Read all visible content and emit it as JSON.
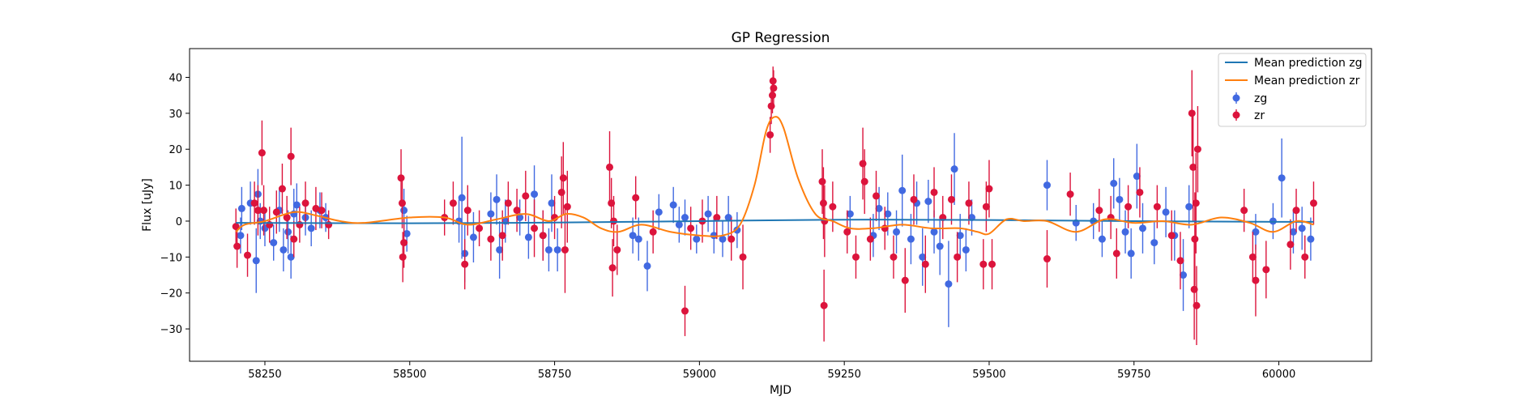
{
  "chart_data": {
    "type": "scatter",
    "title": "GP Regression",
    "xlabel": "MJD",
    "ylabel": "Flux [uJy]",
    "xlim": [
      58120,
      60160
    ],
    "ylim": [
      -39,
      48
    ],
    "xticks": [
      58250,
      58500,
      58750,
      59000,
      59250,
      59500,
      59750,
      60000
    ],
    "xtick_labels": [
      "58250",
      "58500",
      "58750",
      "59000",
      "59250",
      "59500",
      "59750",
      "60000"
    ],
    "yticks": [
      -30,
      -20,
      -10,
      0,
      10,
      20,
      30,
      40
    ],
    "ytick_labels": [
      "−30",
      "−20",
      "−10",
      "0",
      "10",
      "20",
      "30",
      "40"
    ],
    "grid": false,
    "legend_position": "top-right",
    "series": [
      {
        "name": "Mean prediction zg",
        "kind": "line",
        "color": "#1f77b4",
        "x": [
          58200,
          58500,
          58750,
          59000,
          59250,
          59500,
          59750,
          60000,
          60060
        ],
        "y": [
          -0.5,
          -0.6,
          -0.4,
          0.0,
          0.4,
          0.3,
          0.0,
          -0.2,
          -0.2
        ]
      },
      {
        "name": "Mean prediction zr",
        "kind": "line",
        "color": "#ff7f0e",
        "x": [
          58200,
          58215,
          58250,
          58300,
          58340,
          58380,
          58420,
          58500,
          58560,
          58600,
          58650,
          58700,
          58740,
          58770,
          58800,
          58830,
          58860,
          58900,
          58950,
          59000,
          59040,
          59070,
          59095,
          59115,
          59130,
          59145,
          59170,
          59200,
          59230,
          59260,
          59300,
          59350,
          59400,
          59450,
          59480,
          59500,
          59530,
          59560,
          59600,
          59650,
          59700,
          59750,
          59800,
          59850,
          59900,
          59950,
          59990,
          60030,
          60060
        ],
        "y": [
          -3,
          -1,
          0,
          2.5,
          1.5,
          0,
          -0.5,
          1,
          1,
          -1,
          0.5,
          2,
          0,
          2,
          1,
          -2,
          -3,
          -1,
          -3,
          -4,
          -4,
          -1,
          10,
          25,
          29,
          26,
          12,
          2,
          0,
          -2,
          -2,
          -1,
          -2,
          -2,
          -3,
          -3.5,
          0.5,
          0,
          0,
          -3,
          0.5,
          -0.5,
          0,
          -1,
          1,
          -0.5,
          -3,
          0,
          -1
        ]
      },
      {
        "name": "zg",
        "kind": "errorbar",
        "color": "#4169e1",
        "points": [
          [
            58208,
            -4,
            5
          ],
          [
            58210,
            3.5,
            6
          ],
          [
            58225,
            5,
            6
          ],
          [
            58235,
            -11,
            9
          ],
          [
            58238,
            7.5,
            7
          ],
          [
            58242,
            0,
            5
          ],
          [
            58250,
            -2,
            5
          ],
          [
            58265,
            -6,
            5
          ],
          [
            58275,
            3,
            6
          ],
          [
            58282,
            -8,
            6
          ],
          [
            58290,
            -3,
            6
          ],
          [
            58295,
            -10,
            6
          ],
          [
            58300,
            2,
            7
          ],
          [
            58305,
            4.5,
            6
          ],
          [
            58320,
            1,
            5
          ],
          [
            58330,
            -2,
            5
          ],
          [
            58345,
            3,
            5
          ],
          [
            58355,
            1,
            4
          ],
          [
            58490,
            3,
            6
          ],
          [
            58495,
            -3.5,
            5
          ],
          [
            58585,
            0,
            6
          ],
          [
            58590,
            6.5,
            17
          ],
          [
            58595,
            -9,
            8
          ],
          [
            58610,
            -4.5,
            7
          ],
          [
            58640,
            2,
            6
          ],
          [
            58650,
            6,
            7
          ],
          [
            58655,
            -8,
            8
          ],
          [
            58665,
            0,
            6
          ],
          [
            58690,
            1,
            5
          ],
          [
            58705,
            -4.5,
            6
          ],
          [
            58715,
            7.5,
            8
          ],
          [
            58730,
            -4,
            7
          ],
          [
            58740,
            -8,
            6
          ],
          [
            58745,
            5,
            8
          ],
          [
            58755,
            -8,
            6
          ],
          [
            58885,
            -4,
            5
          ],
          [
            58895,
            -5,
            6
          ],
          [
            58910,
            -12.5,
            7
          ],
          [
            58930,
            2.5,
            5
          ],
          [
            58955,
            4.5,
            5
          ],
          [
            58965,
            -1,
            5
          ],
          [
            58975,
            1,
            5
          ],
          [
            58995,
            -5,
            4
          ],
          [
            59015,
            2,
            5
          ],
          [
            59025,
            -4,
            5
          ],
          [
            59040,
            -5,
            5
          ],
          [
            59050,
            1,
            6
          ],
          [
            59065,
            -2.5,
            5
          ],
          [
            59260,
            2,
            5
          ],
          [
            59300,
            -4,
            6
          ],
          [
            59310,
            3.5,
            6
          ],
          [
            59325,
            2,
            6
          ],
          [
            59340,
            -3,
            6
          ],
          [
            59350,
            8.5,
            10
          ],
          [
            59365,
            -5,
            7
          ],
          [
            59375,
            5,
            6
          ],
          [
            59385,
            -10,
            8
          ],
          [
            59395,
            5.5,
            6
          ],
          [
            59405,
            -3,
            6
          ],
          [
            59415,
            -7,
            8
          ],
          [
            59430,
            -17.5,
            12
          ],
          [
            59440,
            14.5,
            10
          ],
          [
            59450,
            -4,
            6
          ],
          [
            59460,
            -8,
            6
          ],
          [
            59470,
            1,
            5
          ],
          [
            59600,
            10,
            7
          ],
          [
            59650,
            -0.5,
            5
          ],
          [
            59680,
            0,
            5
          ],
          [
            59695,
            -5,
            5
          ],
          [
            59715,
            10.5,
            7
          ],
          [
            59725,
            6,
            6
          ],
          [
            59735,
            -3,
            6
          ],
          [
            59745,
            -9,
            7
          ],
          [
            59755,
            12.5,
            9
          ],
          [
            59765,
            -2,
            7
          ],
          [
            59785,
            -6,
            6
          ],
          [
            59805,
            2.5,
            7
          ],
          [
            59820,
            -4,
            7
          ],
          [
            59835,
            -15,
            10
          ],
          [
            59845,
            4,
            6
          ],
          [
            59960,
            -3,
            5
          ],
          [
            59990,
            0,
            5
          ],
          [
            60005,
            12,
            11
          ],
          [
            60025,
            -3,
            6
          ],
          [
            60040,
            -2,
            6
          ],
          [
            60055,
            -5,
            6
          ]
        ]
      },
      {
        "name": "zr",
        "kind": "errorbar",
        "color": "#dc143c",
        "points": [
          [
            58200,
            -1.5,
            5
          ],
          [
            58202,
            -7,
            6
          ],
          [
            58220,
            -9.5,
            6
          ],
          [
            58232,
            5,
            6
          ],
          [
            58238,
            3,
            7
          ],
          [
            58245,
            19,
            9
          ],
          [
            58248,
            3,
            7
          ],
          [
            58258,
            -1,
            5
          ],
          [
            58270,
            2.5,
            6
          ],
          [
            58280,
            9,
            7
          ],
          [
            58288,
            1,
            6
          ],
          [
            58295,
            18,
            8
          ],
          [
            58300,
            -5,
            5
          ],
          [
            58310,
            -1,
            5
          ],
          [
            58320,
            5,
            6
          ],
          [
            58338,
            3.5,
            6
          ],
          [
            58348,
            3,
            5
          ],
          [
            58360,
            -1,
            4
          ],
          [
            58485,
            12,
            8
          ],
          [
            58487,
            5,
            7
          ],
          [
            58488,
            -10,
            7
          ],
          [
            58490,
            -6,
            7
          ],
          [
            58560,
            1,
            5
          ],
          [
            58575,
            5,
            6
          ],
          [
            58595,
            -12,
            7
          ],
          [
            58600,
            3,
            7
          ],
          [
            58620,
            -2,
            5
          ],
          [
            58640,
            -5,
            6
          ],
          [
            58660,
            -4,
            7
          ],
          [
            58670,
            5,
            6
          ],
          [
            58685,
            3,
            6
          ],
          [
            58700,
            7,
            7
          ],
          [
            58715,
            -2,
            8
          ],
          [
            58730,
            -4,
            7
          ],
          [
            58750,
            1,
            6
          ],
          [
            58762,
            8,
            10
          ],
          [
            58765,
            12,
            10
          ],
          [
            58768,
            -8,
            12
          ],
          [
            58772,
            4,
            10
          ],
          [
            58845,
            15,
            10
          ],
          [
            58848,
            5,
            7
          ],
          [
            58850,
            -13,
            8
          ],
          [
            58852,
            0,
            7
          ],
          [
            58858,
            -8,
            7
          ],
          [
            58890,
            6.5,
            6
          ],
          [
            58920,
            -3,
            6
          ],
          [
            58975,
            -25,
            7
          ],
          [
            58985,
            -2,
            6
          ],
          [
            59005,
            0,
            6
          ],
          [
            59030,
            1,
            6
          ],
          [
            59055,
            -5,
            6
          ],
          [
            59075,
            -10,
            9
          ],
          [
            59122,
            24,
            5
          ],
          [
            59124,
            32,
            5
          ],
          [
            59126,
            35,
            5
          ],
          [
            59127,
            39,
            4
          ],
          [
            59128,
            37,
            5
          ],
          [
            59212,
            11,
            9
          ],
          [
            59214,
            5,
            10
          ],
          [
            59215,
            -23.5,
            10
          ],
          [
            59216,
            0,
            10
          ],
          [
            59230,
            4,
            7
          ],
          [
            59255,
            -3,
            6
          ],
          [
            59270,
            -10,
            6
          ],
          [
            59282,
            16,
            10
          ],
          [
            59285,
            11,
            9
          ],
          [
            59295,
            -5,
            6
          ],
          [
            59305,
            7,
            7
          ],
          [
            59320,
            -2,
            6
          ],
          [
            59335,
            -10,
            6
          ],
          [
            59355,
            -16.5,
            9
          ],
          [
            59370,
            6,
            7
          ],
          [
            59390,
            -12,
            8
          ],
          [
            59405,
            8,
            7
          ],
          [
            59420,
            1,
            6
          ],
          [
            59435,
            6,
            7
          ],
          [
            59445,
            -10,
            7
          ],
          [
            59465,
            5,
            6
          ],
          [
            59490,
            -12,
            7
          ],
          [
            59495,
            4,
            7
          ],
          [
            59500,
            9,
            8
          ],
          [
            59505,
            -12,
            7
          ],
          [
            59600,
            -10.5,
            8
          ],
          [
            59640,
            7.5,
            6
          ],
          [
            59690,
            3,
            6
          ],
          [
            59710,
            1,
            6
          ],
          [
            59720,
            -9,
            7
          ],
          [
            59740,
            4,
            6
          ],
          [
            59760,
            8,
            7
          ],
          [
            59790,
            4,
            6
          ],
          [
            59815,
            -4,
            7
          ],
          [
            59830,
            -11,
            8
          ],
          [
            59850,
            30,
            12
          ],
          [
            59852,
            15,
            15
          ],
          [
            59854,
            -19,
            14
          ],
          [
            59855,
            -5,
            13
          ],
          [
            59857,
            5,
            14
          ],
          [
            59858,
            -23.5,
            11
          ],
          [
            59860,
            20,
            12
          ],
          [
            59940,
            3,
            6
          ],
          [
            59955,
            -10,
            7
          ],
          [
            59960,
            -16.5,
            10
          ],
          [
            59978,
            -13.5,
            8
          ],
          [
            60020,
            -6.5,
            7
          ],
          [
            60030,
            3,
            6
          ],
          [
            60045,
            -10,
            6
          ],
          [
            60060,
            5,
            6
          ]
        ]
      }
    ]
  }
}
